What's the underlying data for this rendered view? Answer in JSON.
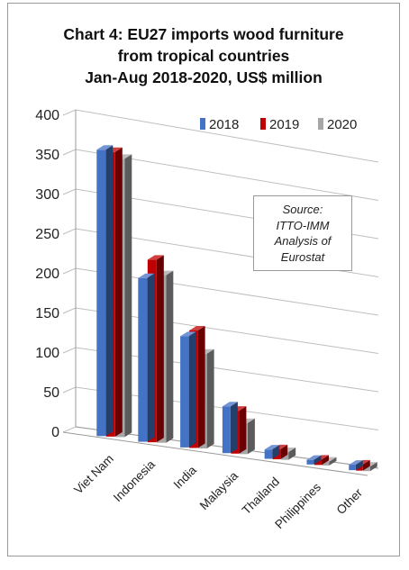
{
  "chart_data": {
    "type": "bar",
    "title_lines": [
      "Chart 4: EU27 imports wood furniture",
      "from tropical countries",
      "Jan-Aug 2018-2020, US$ million"
    ],
    "categories": [
      "Viet Nam",
      "Indonesia",
      "India",
      "Malaysia",
      "Thailand",
      "Philippines",
      "Other"
    ],
    "series": [
      {
        "name": "2018",
        "color": "#4472C4",
        "values": [
          362,
          208,
          142,
          60,
          12,
          6,
          7
        ]
      },
      {
        "name": "2019",
        "color": "#C00000",
        "values": [
          360,
          232,
          150,
          55,
          13,
          7,
          8
        ]
      },
      {
        "name": "2020",
        "color": "#A6A6A6",
        "values": [
          352,
          213,
          121,
          40,
          10,
          5,
          6
        ]
      }
    ],
    "yticks": [
      "0",
      "50",
      "100",
      "150",
      "200",
      "250",
      "300",
      "350",
      "400"
    ],
    "ylim": [
      0,
      400
    ],
    "grid": true,
    "style": "3d-perspective-bars",
    "legend_position": "top-right",
    "annotation": [
      "Source:",
      "ITTO-IMM",
      "Analysis of",
      "Eurostat"
    ]
  }
}
